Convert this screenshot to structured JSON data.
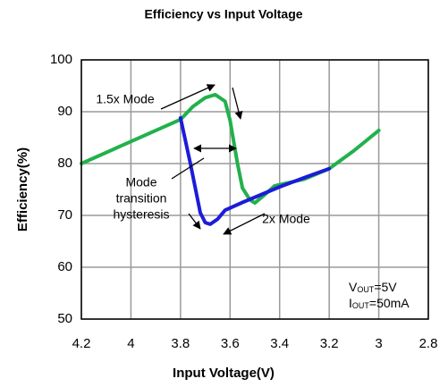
{
  "chart_data": {
    "type": "line",
    "title": "Efficiency vs Input Voltage",
    "xlabel": "Input Voltage(V)",
    "ylabel": "Efficiency(%)",
    "xlim": [
      4.2,
      2.8
    ],
    "ylim": [
      50,
      100
    ],
    "xticks": [
      4.2,
      4,
      3.8,
      3.6,
      3.4,
      3.2,
      3,
      2.8
    ],
    "yticks": [
      50,
      60,
      70,
      80,
      90,
      100
    ],
    "grid": true,
    "series": [
      {
        "name": "1.5x Mode",
        "color": "#22b14c",
        "x": [
          4.2,
          3.8,
          3.75,
          3.7,
          3.66,
          3.62,
          3.6,
          3.57,
          3.55,
          3.52,
          3.5,
          3.46,
          3.42,
          3.3,
          3.2,
          3.1,
          3.0
        ],
        "values": [
          80,
          88.5,
          91,
          92.7,
          93.3,
          92,
          88.3,
          80,
          75.3,
          73,
          72.4,
          74,
          75.7,
          77,
          79,
          82.5,
          86.4
        ]
      },
      {
        "name": "2x Mode",
        "color": "#1c1cd8",
        "x": [
          3.8,
          3.76,
          3.72,
          3.7,
          3.68,
          3.65,
          3.62,
          3.55,
          3.4,
          3.3,
          3.2
        ],
        "values": [
          88.8,
          80,
          70.5,
          68.6,
          68.3,
          69.3,
          71,
          72.5,
          75.5,
          77.3,
          79
        ]
      }
    ],
    "annotations": {
      "hysteresis": [
        "Mode",
        "transition",
        "hysteresis"
      ],
      "vout": {
        "main": "V",
        "sub": "OUT",
        "rest": "=5V"
      },
      "iout": {
        "main": "I",
        "sub": "OUT",
        "rest": "=50mA"
      }
    }
  }
}
